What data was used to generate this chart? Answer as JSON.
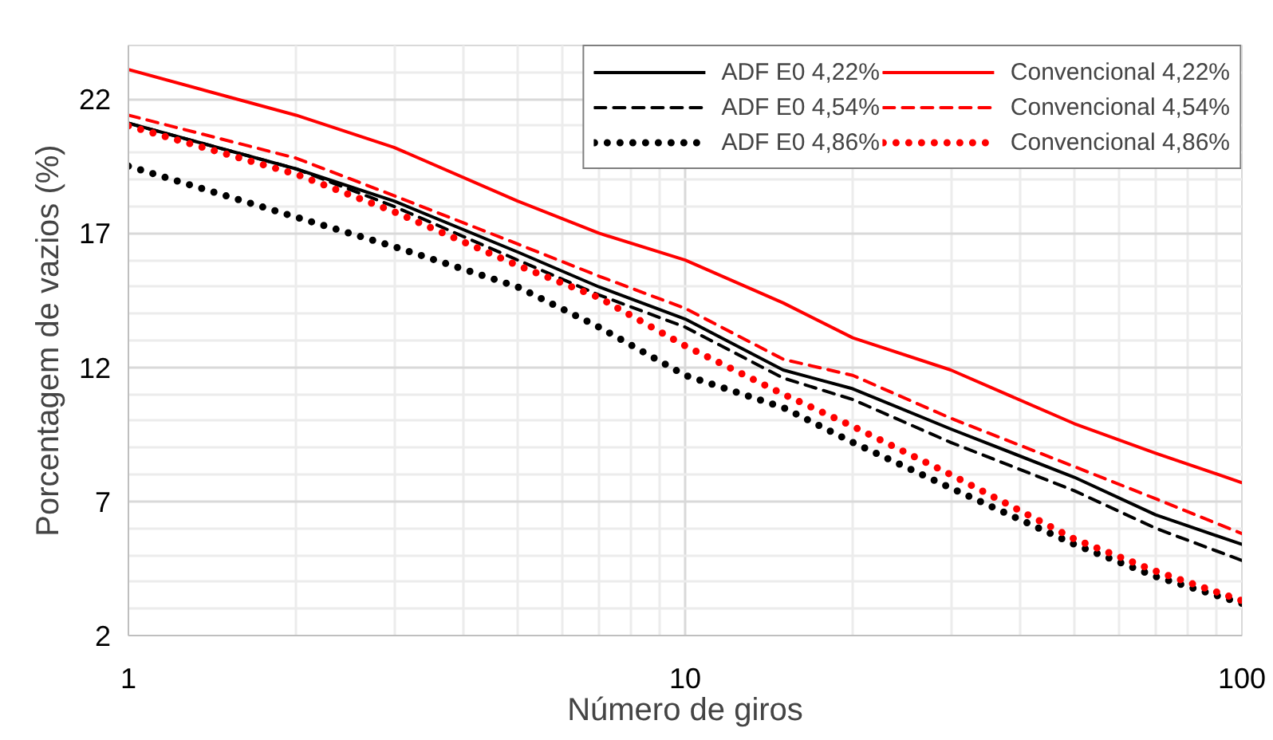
{
  "chart_data": {
    "type": "line",
    "xlabel": "Número de giros",
    "ylabel": "Porcentagem de vazios (%)",
    "x": [
      1,
      2,
      3,
      5,
      7,
      10,
      15,
      20,
      30,
      50,
      70,
      100
    ],
    "series": [
      {
        "name": "ADF E0 4,22%",
        "color": "#000000",
        "line_style": "solid",
        "values": [
          21.1,
          19.4,
          18.2,
          16.3,
          15.0,
          13.8,
          11.9,
          11.2,
          9.7,
          7.9,
          6.5,
          5.4
        ]
      },
      {
        "name": "ADF E0 4,54%",
        "color": "#000000",
        "line_style": "dashed",
        "values": [
          21.1,
          19.4,
          18.0,
          16.0,
          14.7,
          13.5,
          11.6,
          10.8,
          9.2,
          7.4,
          6.0,
          4.8
        ]
      },
      {
        "name": "ADF E0 4,86%",
        "color": "#000000",
        "line_style": "dotted",
        "values": [
          19.5,
          17.6,
          16.5,
          15.0,
          13.5,
          11.7,
          10.5,
          9.2,
          7.5,
          5.4,
          4.2,
          3.2
        ]
      },
      {
        "name": "Convencional 4,22%",
        "color": "#ff0000",
        "line_style": "solid",
        "values": [
          23.1,
          21.4,
          20.2,
          18.2,
          17.0,
          16.0,
          14.4,
          13.1,
          11.9,
          9.9,
          8.8,
          7.7
        ]
      },
      {
        "name": "Convencional 4,54%",
        "color": "#ff0000",
        "line_style": "dashed",
        "values": [
          21.4,
          19.8,
          18.4,
          16.6,
          15.4,
          14.2,
          12.3,
          11.7,
          10.1,
          8.3,
          7.1,
          5.8
        ]
      },
      {
        "name": "Convencional 4,86%",
        "color": "#ff0000",
        "line_style": "dotted",
        "values": [
          21.0,
          19.2,
          17.8,
          15.8,
          14.6,
          12.8,
          11.0,
          9.8,
          8.0,
          5.6,
          4.4,
          3.3
        ]
      }
    ],
    "log": "x",
    "xlim": [
      1,
      100
    ],
    "xticks": [
      1,
      10,
      100
    ],
    "ylim": [
      2,
      24
    ],
    "yticks": [
      2,
      7,
      12,
      17,
      22
    ],
    "grid": true,
    "legend": "top right",
    "marker": "none"
  }
}
